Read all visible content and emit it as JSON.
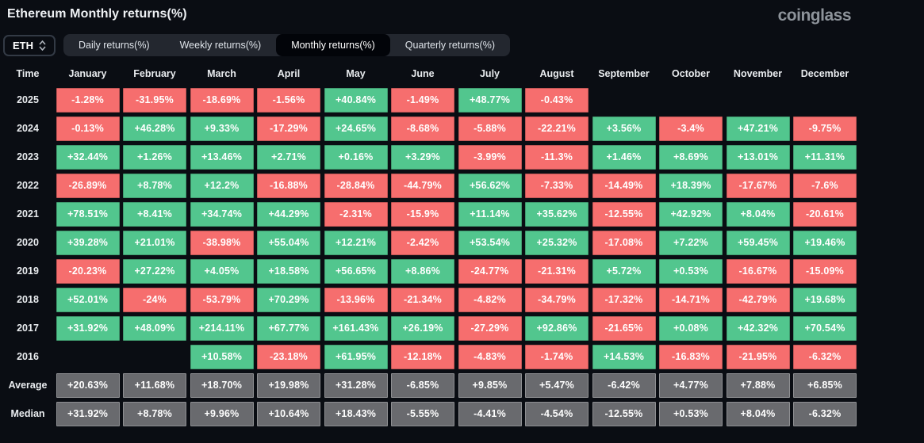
{
  "header": {
    "title": "Ethereum Monthly returns(%)",
    "logo": "coinglass"
  },
  "controls": {
    "symbol_select": {
      "value": "ETH"
    },
    "tabs": [
      {
        "label": "Daily returns(%)",
        "selected": false
      },
      {
        "label": "Weekly returns(%)",
        "selected": false
      },
      {
        "label": "Monthly returns(%)",
        "selected": true
      },
      {
        "label": "Quarterly returns(%)",
        "selected": false
      }
    ]
  },
  "chart_data": {
    "type": "table",
    "title": "Ethereum Monthly returns(%)",
    "legend_position": "none",
    "grid": false,
    "colors": {
      "positive": "#52c68e",
      "negative": "#f66e6e",
      "stat": "#696a6e"
    },
    "columns": [
      "Time",
      "January",
      "February",
      "March",
      "April",
      "May",
      "June",
      "July",
      "August",
      "September",
      "October",
      "November",
      "December"
    ],
    "rows": [
      {
        "label": "2025",
        "kind": "year",
        "values": [
          "-1.28%",
          "-31.95%",
          "-18.69%",
          "-1.56%",
          "+40.84%",
          "-1.49%",
          "+48.77%",
          "-0.43%",
          "",
          "",
          "",
          ""
        ]
      },
      {
        "label": "2024",
        "kind": "year",
        "values": [
          "-0.13%",
          "+46.28%",
          "+9.33%",
          "-17.29%",
          "+24.65%",
          "-8.68%",
          "-5.88%",
          "-22.21%",
          "+3.56%",
          "-3.4%",
          "+47.21%",
          "-9.75%"
        ]
      },
      {
        "label": "2023",
        "kind": "year",
        "values": [
          "+32.44%",
          "+1.26%",
          "+13.46%",
          "+2.71%",
          "+0.16%",
          "+3.29%",
          "-3.99%",
          "-11.3%",
          "+1.46%",
          "+8.69%",
          "+13.01%",
          "+11.31%"
        ]
      },
      {
        "label": "2022",
        "kind": "year",
        "values": [
          "-26.89%",
          "+8.78%",
          "+12.2%",
          "-16.88%",
          "-28.84%",
          "-44.79%",
          "+56.62%",
          "-7.33%",
          "-14.49%",
          "+18.39%",
          "-17.67%",
          "-7.6%"
        ]
      },
      {
        "label": "2021",
        "kind": "year",
        "values": [
          "+78.51%",
          "+8.41%",
          "+34.74%",
          "+44.29%",
          "-2.31%",
          "-15.9%",
          "+11.14%",
          "+35.62%",
          "-12.55%",
          "+42.92%",
          "+8.04%",
          "-20.61%"
        ]
      },
      {
        "label": "2020",
        "kind": "year",
        "values": [
          "+39.28%",
          "+21.01%",
          "-38.98%",
          "+55.04%",
          "+12.21%",
          "-2.42%",
          "+53.54%",
          "+25.32%",
          "-17.08%",
          "+7.22%",
          "+59.45%",
          "+19.46%"
        ]
      },
      {
        "label": "2019",
        "kind": "year",
        "values": [
          "-20.23%",
          "+27.22%",
          "+4.05%",
          "+18.58%",
          "+56.65%",
          "+8.86%",
          "-24.77%",
          "-21.31%",
          "+5.72%",
          "+0.53%",
          "-16.67%",
          "-15.09%"
        ]
      },
      {
        "label": "2018",
        "kind": "year",
        "values": [
          "+52.01%",
          "-24%",
          "-53.79%",
          "+70.29%",
          "-13.96%",
          "-21.34%",
          "-4.82%",
          "-34.79%",
          "-17.32%",
          "-14.71%",
          "-42.79%",
          "+19.68%"
        ]
      },
      {
        "label": "2017",
        "kind": "year",
        "values": [
          "+31.92%",
          "+48.09%",
          "+214.11%",
          "+67.77%",
          "+161.43%",
          "+26.19%",
          "-27.29%",
          "+92.86%",
          "-21.65%",
          "+0.08%",
          "+42.32%",
          "+70.54%"
        ]
      },
      {
        "label": "2016",
        "kind": "year",
        "values": [
          "",
          "",
          "+10.58%",
          "-23.18%",
          "+61.95%",
          "-12.18%",
          "-4.83%",
          "-1.74%",
          "+14.53%",
          "-16.83%",
          "-21.95%",
          "-6.32%"
        ]
      },
      {
        "label": "Average",
        "kind": "stat",
        "values": [
          "+20.63%",
          "+11.68%",
          "+18.70%",
          "+19.98%",
          "+31.28%",
          "-6.85%",
          "+9.85%",
          "+5.47%",
          "-6.42%",
          "+4.77%",
          "+7.88%",
          "+6.85%"
        ]
      },
      {
        "label": "Median",
        "kind": "stat",
        "values": [
          "+31.92%",
          "+8.78%",
          "+9.96%",
          "+10.64%",
          "+18.43%",
          "-5.55%",
          "-4.41%",
          "-4.54%",
          "-12.55%",
          "+0.53%",
          "+8.04%",
          "-6.32%"
        ]
      }
    ]
  }
}
